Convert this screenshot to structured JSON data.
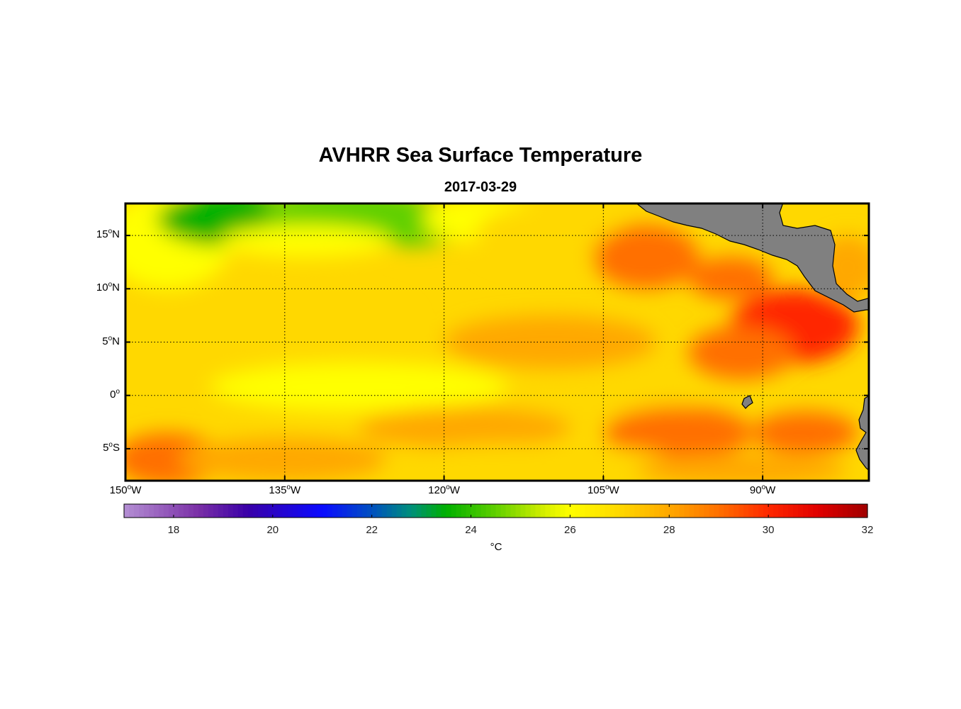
{
  "title": "AVHRR Sea Surface Temperature",
  "subtitle": "2017-03-29",
  "map": {
    "lon_range": [
      -150,
      -80
    ],
    "lat_range": [
      -8,
      18
    ],
    "lat_ticks": [
      {
        "value": 15,
        "num": "15",
        "hemi": "N"
      },
      {
        "value": 10,
        "num": "10",
        "hemi": "N"
      },
      {
        "value": 5,
        "num": "5",
        "hemi": "N"
      },
      {
        "value": 0,
        "num": "0",
        "hemi": ""
      },
      {
        "value": -5,
        "num": "5",
        "hemi": "S"
      }
    ],
    "lon_ticks": [
      {
        "value": -150,
        "num": "150",
        "hemi": "W"
      },
      {
        "value": -135,
        "num": "135",
        "hemi": "W"
      },
      {
        "value": -120,
        "num": "120",
        "hemi": "W"
      },
      {
        "value": -105,
        "num": "105",
        "hemi": "W"
      },
      {
        "value": -90,
        "num": "90",
        "hemi": "W"
      }
    ],
    "land_color": "#808080"
  },
  "colorbar": {
    "min": 17,
    "max": 32,
    "ticks": [
      18,
      20,
      22,
      24,
      26,
      28,
      30,
      32
    ],
    "unit": "°C",
    "stops": [
      {
        "v": 17,
        "c": "#b48fd4"
      },
      {
        "v": 18.5,
        "c": "#7a2fa6"
      },
      {
        "v": 19.5,
        "c": "#3a00a8"
      },
      {
        "v": 21,
        "c": "#0a0aff"
      },
      {
        "v": 22,
        "c": "#0050c0"
      },
      {
        "v": 22.8,
        "c": "#00907a"
      },
      {
        "v": 23.5,
        "c": "#00b000"
      },
      {
        "v": 24.5,
        "c": "#60d000"
      },
      {
        "v": 25.5,
        "c": "#d8f000"
      },
      {
        "v": 26,
        "c": "#ffff00"
      },
      {
        "v": 27,
        "c": "#ffd800"
      },
      {
        "v": 28,
        "c": "#ffa800"
      },
      {
        "v": 29,
        "c": "#ff7000"
      },
      {
        "v": 30,
        "c": "#ff2800"
      },
      {
        "v": 31,
        "c": "#e00000"
      },
      {
        "v": 32,
        "c": "#a00000"
      }
    ]
  }
}
